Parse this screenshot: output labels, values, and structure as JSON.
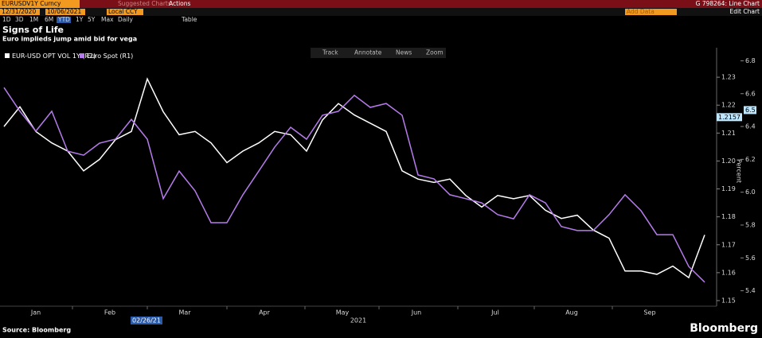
{
  "ui": {
    "ticker": "EURUSDV1Y Curncy",
    "suggested": "Suggested Charts",
    "actions": "Actions",
    "function": "G 798264: Line Chart",
    "start_date": "12/31/2020",
    "end_date": "10/06/2021",
    "currency": "Local CCY",
    "add_data": "Add Data",
    "edit_chart": "Edit Chart",
    "periods": [
      "1D",
      "3D",
      "1M",
      "6M",
      "YTD",
      "1Y",
      "5Y",
      "Max"
    ],
    "active_period": "YTD",
    "frequency": "Daily",
    "table": "Table",
    "tools": [
      "Track",
      "Annotate",
      "News",
      "Zoom"
    ]
  },
  "chart_data": {
    "type": "line",
    "title": "Signs of Life",
    "subtitle": "Euro implieds jump amid bid for vega",
    "xtick_labels": [
      "Jan",
      "Feb",
      "Mar",
      "Apr",
      "May",
      "Jun",
      "Jul",
      "Aug",
      "Sep"
    ],
    "x_year": "2021",
    "series": [
      {
        "name": "EUR-USD OPT VOL 1Y (R2)",
        "color": "#ffffff",
        "axis": "y2",
        "values": [
          6.4,
          6.52,
          6.37,
          6.3,
          6.25,
          6.13,
          6.2,
          6.32,
          6.37,
          6.69,
          6.49,
          6.35,
          6.37,
          6.3,
          6.18,
          6.25,
          6.3,
          6.37,
          6.35,
          6.25,
          6.44,
          6.54,
          6.47,
          6.42,
          6.37,
          6.13,
          6.08,
          6.06,
          6.08,
          5.98,
          5.91,
          5.98,
          5.96,
          5.98,
          5.89,
          5.84,
          5.86,
          5.77,
          5.72,
          5.52,
          5.52,
          5.5,
          5.55,
          5.48,
          5.74
        ]
      },
      {
        "name": "Euro Spot (R1)",
        "color": "#b57bea",
        "values": [
          1.2263,
          1.2178,
          1.2107,
          1.2178,
          1.2035,
          1.2021,
          1.2064,
          1.2078,
          1.2149,
          1.2078,
          1.1865,
          1.1964,
          1.1893,
          1.1779,
          1.1779,
          1.1879,
          1.1964,
          1.205,
          1.2121,
          1.2078,
          1.2164,
          1.2178,
          1.2235,
          1.2192,
          1.2206,
          1.2164,
          1.195,
          1.1936,
          1.1879,
          1.1865,
          1.185,
          1.1808,
          1.1793,
          1.1879,
          1.185,
          1.1765,
          1.1751,
          1.1751,
          1.1808,
          1.1879,
          1.1822,
          1.1736,
          1.1736,
          1.1622,
          1.1566
        ]
      }
    ],
    "ylim": [
      1.148,
      1.24
    ],
    "yticks": [
      1.15,
      1.16,
      1.17,
      1.18,
      1.19,
      {
        "value": 1.2,
        "label": "1.20"
      },
      1.21,
      1.22,
      1.23
    ],
    "y2lim": [
      5.306,
      6.87
    ],
    "y2ticks": [
      5.4,
      5.6,
      5.8,
      {
        "value": 6,
        "label": "6.0"
      },
      6.2,
      6.4,
      6.6,
      6.8
    ],
    "y2label": "Percent",
    "grid": false,
    "cursor": {
      "date": "02/26/21",
      "values": [
        1.2157,
        6.5
      ]
    },
    "source": "Source: Bloomberg",
    "brand": "Bloomberg"
  }
}
